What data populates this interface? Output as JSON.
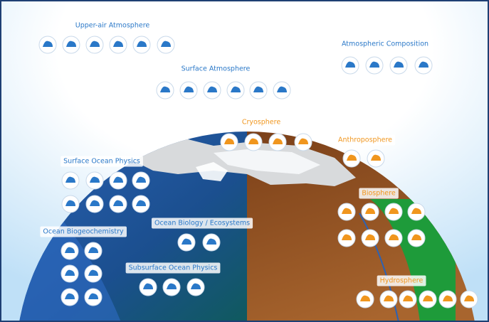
{
  "groups": [
    {
      "label": "Upper-air Atmosphere"
    },
    {
      "label": "Atmospheric Composition"
    },
    {
      "label": "Surface Atmosphere"
    },
    {
      "label": "Cryosphere"
    },
    {
      "label": "Anthroposphere"
    },
    {
      "label": "Surface Ocean Physics"
    },
    {
      "label": "Biosphere"
    },
    {
      "label": "Ocean Biogeochemistry"
    },
    {
      "label": "Ocean Biology / Ecosystems"
    },
    {
      "label": "Subsurface Ocean Physics"
    },
    {
      "label": "Hydrosphere"
    }
  ]
}
